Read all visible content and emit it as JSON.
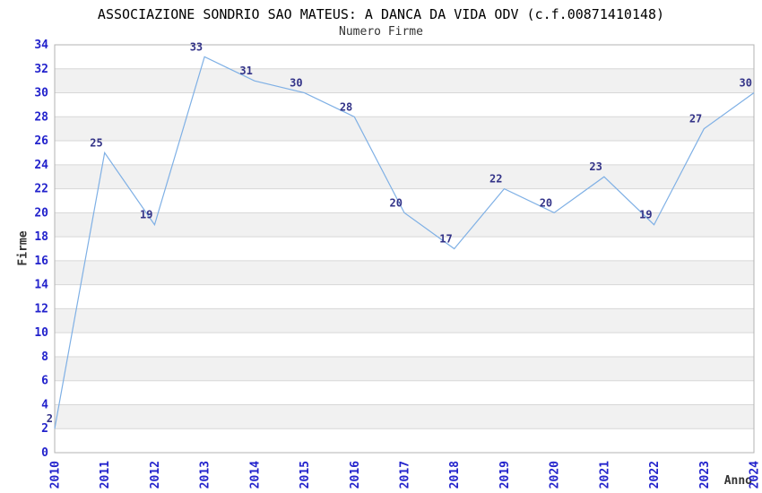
{
  "chart_data": {
    "type": "line",
    "title": "ASSOCIAZIONE SONDRIO SAO MATEUS: A DANCA DA VIDA ODV (c.f.00871410148)",
    "subtitle": "Numero Firme",
    "xlabel": "Anno",
    "ylabel": "Firme",
    "categories": [
      "2010",
      "2011",
      "2012",
      "2013",
      "2014",
      "2015",
      "2016",
      "2017",
      "2018",
      "2019",
      "2020",
      "2021",
      "2022",
      "2023",
      "2024"
    ],
    "values": [
      2,
      25,
      19,
      33,
      31,
      30,
      28,
      20,
      17,
      22,
      20,
      23,
      19,
      27,
      30
    ],
    "ylim": [
      0,
      34
    ],
    "ytick_step": 2,
    "grid": true,
    "legend": "none",
    "colors": {
      "line": "#7fb0e5",
      "tick_label": "#2222cc",
      "point_label": "#333388",
      "band": "#f1f1f1",
      "grid": "#d7d7d7",
      "plot_border": "#b3b3b3",
      "title": "#000000",
      "axis_title": "#333333",
      "background": "#ffffff"
    }
  }
}
